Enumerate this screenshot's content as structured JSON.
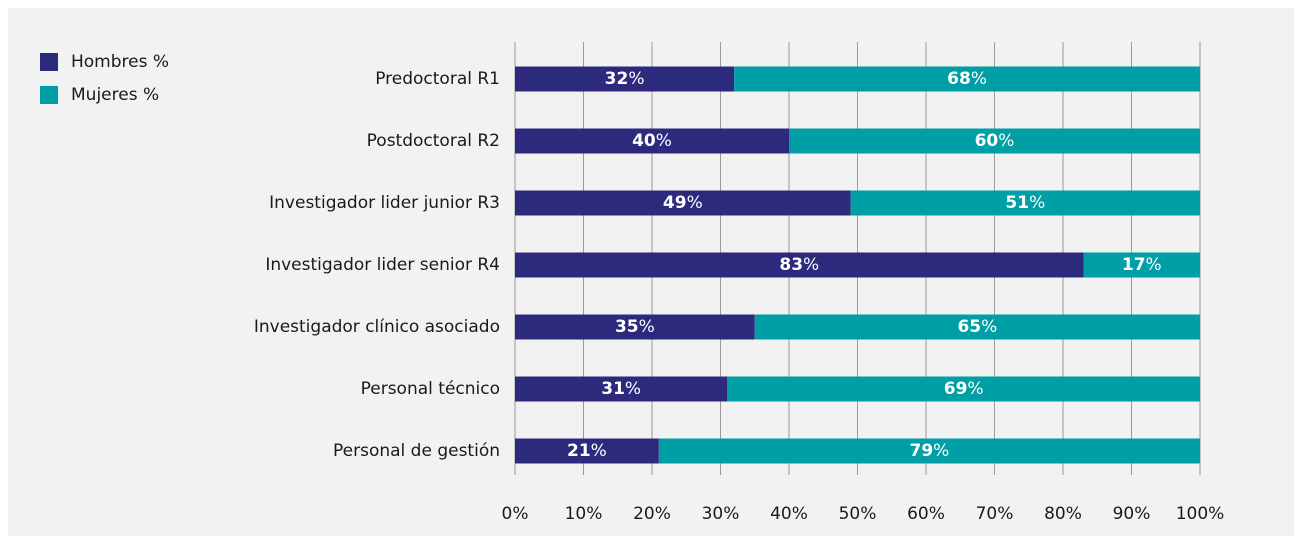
{
  "chart_data": {
    "type": "stacked_barh",
    "categories": [
      "Predoctoral R1",
      "Postdoctoral R2",
      "Investigador lider junior R3",
      "Investigador lider senior R4",
      "Investigador clínico asociado",
      "Personal técnico",
      "Personal de gestión"
    ],
    "series": [
      {
        "name": "Hombres %",
        "color": "#2d2a7d",
        "values": [
          32,
          40,
          49,
          83,
          35,
          31,
          21
        ],
        "value_labels": [
          "32%",
          "40%",
          "49%",
          "83%",
          "35%",
          "31%",
          "21%"
        ]
      },
      {
        "name": "Mujeres %",
        "color": "#009fa6",
        "values": [
          68,
          60,
          51,
          17,
          65,
          69,
          79
        ],
        "value_labels": [
          "68%",
          "60%",
          "51%",
          "17%",
          "65%",
          "69%",
          "79%"
        ]
      }
    ],
    "xlim": [
      0,
      100
    ],
    "xticks": [
      {
        "value": 0,
        "label": "0%"
      },
      {
        "value": 10,
        "label": "10%"
      },
      {
        "value": 20,
        "label": "20%"
      },
      {
        "value": 30,
        "label": "30%"
      },
      {
        "value": 40,
        "label": "40%"
      },
      {
        "value": 50,
        "label": "50%"
      },
      {
        "value": 60,
        "label": "60%"
      },
      {
        "value": 70,
        "label": "70%"
      },
      {
        "value": 80,
        "label": "80%"
      },
      {
        "value": 90,
        "label": "90%"
      },
      {
        "value": 100,
        "label": "100%"
      }
    ],
    "grid": true,
    "legend": "upper left"
  }
}
